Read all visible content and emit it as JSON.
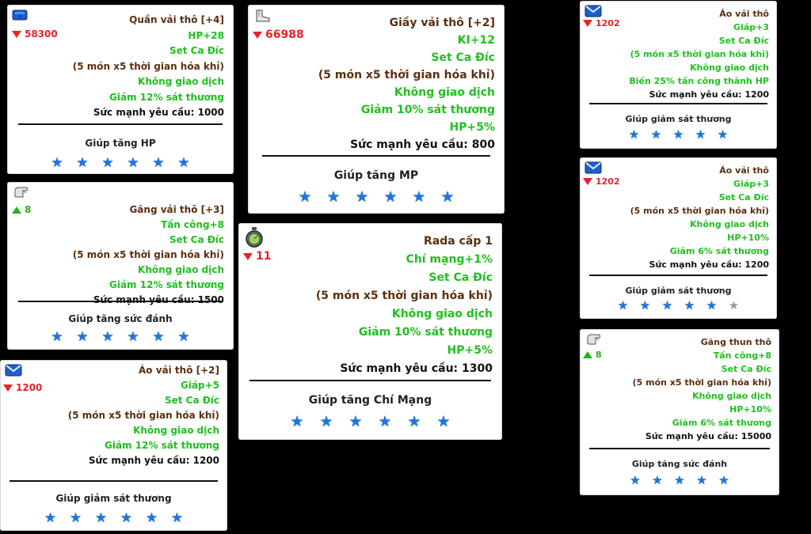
{
  "colors": {
    "background": "#000000",
    "card": "#ffffff",
    "title": "#5b2f10",
    "green": "#1fc01f",
    "price_down": "#e8222a",
    "price_up": "#21b421",
    "star_on": "#1b77e0",
    "star_off": "#9a9a9a"
  },
  "cards": [
    {
      "icon": "pants-icon",
      "price": "58300",
      "price_dir": "down",
      "title": "Quần vải thô [+4]",
      "lines": [
        {
          "t": "HP+28",
          "c": "green"
        },
        {
          "t": "Set Ca Đíc",
          "c": "green"
        },
        {
          "t": "(5 món x5 thời gian hóa khỉ)",
          "c": "brown"
        },
        {
          "t": "Không giao dịch",
          "c": "green"
        },
        {
          "t": "Giảm 12% sát thương",
          "c": "green"
        },
        {
          "t": "Sức mạnh yêu cầu: 1000",
          "c": "black"
        }
      ],
      "caption": "Giúp tăng HP",
      "stars": [
        1,
        1,
        1,
        1,
        1,
        1
      ]
    },
    {
      "icon": "glove-icon",
      "price": "8",
      "price_dir": "up",
      "title": "Găng vải thô [+3]",
      "lines": [
        {
          "t": "Tấn công+8",
          "c": "green"
        },
        {
          "t": "Set Ca Đíc",
          "c": "green"
        },
        {
          "t": "(5 món x5 thời gian hóa khỉ)",
          "c": "brown"
        },
        {
          "t": "Không giao dịch",
          "c": "green"
        },
        {
          "t": "Giảm 12% sát thương",
          "c": "green"
        },
        {
          "t": "Sức mạnh yêu cầu: 1500",
          "c": "black"
        }
      ],
      "caption": "Giúp tăng sức đánh",
      "stars": [
        1,
        1,
        1,
        1,
        1,
        1
      ]
    },
    {
      "icon": "shirt-icon",
      "price": "1200",
      "price_dir": "down",
      "title": "Áo vải thô [+2]",
      "lines": [
        {
          "t": "Giáp+5",
          "c": "green"
        },
        {
          "t": "Set Ca Đíc",
          "c": "green"
        },
        {
          "t": "(5 món x5 thời gian hóa khỉ)",
          "c": "brown"
        },
        {
          "t": "Không giao dịch",
          "c": "green"
        },
        {
          "t": "Giảm 12% sát thương",
          "c": "green"
        },
        {
          "t": "Sức mạnh yêu cầu: 1200",
          "c": "black"
        }
      ],
      "caption": "Giúp giảm sát thương",
      "stars": [
        1,
        1,
        1,
        1,
        1,
        1
      ]
    },
    {
      "icon": "shoe-icon",
      "price": "66988",
      "price_dir": "down",
      "title": "Giầy vải thô [+2]",
      "lines": [
        {
          "t": "KI+12",
          "c": "green"
        },
        {
          "t": "Set Ca Đíc",
          "c": "green"
        },
        {
          "t": "(5 món x5 thời gian hóa khỉ)",
          "c": "brown"
        },
        {
          "t": "Không giao dịch",
          "c": "green"
        },
        {
          "t": "Giảm 10% sát thương",
          "c": "green"
        },
        {
          "t": "HP+5%",
          "c": "green"
        },
        {
          "t": "Sức mạnh yêu cầu: 800",
          "c": "black"
        }
      ],
      "caption": "Giúp tăng MP",
      "stars": [
        1,
        1,
        1,
        1,
        1,
        1
      ]
    },
    {
      "icon": "radar-icon",
      "price": "11",
      "price_dir": "down",
      "title": "Rada cấp 1",
      "lines": [
        {
          "t": "Chí mạng+1%",
          "c": "green"
        },
        {
          "t": "Set Ca Đíc",
          "c": "green"
        },
        {
          "t": "(5 món x5 thời gian hóa khỉ)",
          "c": "brown"
        },
        {
          "t": "Không giao dịch",
          "c": "green"
        },
        {
          "t": "Giảm 10% sát thương",
          "c": "green"
        },
        {
          "t": "HP+5%",
          "c": "green"
        },
        {
          "t": "Sức mạnh yêu cầu: 1300",
          "c": "black"
        }
      ],
      "caption": "Giúp tăng Chí Mạng",
      "stars": [
        1,
        1,
        1,
        1,
        1,
        1
      ]
    },
    {
      "icon": "shirt-icon",
      "price": "1202",
      "price_dir": "down",
      "title": "Áo vải thô",
      "lines": [
        {
          "t": "Giáp+3",
          "c": "green"
        },
        {
          "t": "Set Ca Đíc",
          "c": "green"
        },
        {
          "t": "(5 món x5 thời gian hóa khỉ)",
          "c": "green"
        },
        {
          "t": "Không giao dịch",
          "c": "green"
        },
        {
          "t": "Biến 25% tấn công thành HP",
          "c": "green"
        },
        {
          "t": "Sức mạnh yêu cầu: 1200",
          "c": "black"
        }
      ],
      "caption": "Giúp giảm sát thương",
      "stars": [
        1,
        1,
        1,
        1,
        1
      ]
    },
    {
      "icon": "shirt-icon",
      "price": "1202",
      "price_dir": "down",
      "title": "Áo vải thô",
      "lines": [
        {
          "t": "Giáp+3",
          "c": "green"
        },
        {
          "t": "Set Ca Đíc",
          "c": "green"
        },
        {
          "t": "(5 món x5 thời gian hóa khỉ)",
          "c": "brown"
        },
        {
          "t": "Không giao dịch",
          "c": "green"
        },
        {
          "t": "HP+10%",
          "c": "green"
        },
        {
          "t": "Giảm 6% sát thương",
          "c": "green"
        },
        {
          "t": "Sức mạnh yêu cầu: 1200",
          "c": "black"
        }
      ],
      "caption": "Giúp giảm sát thương",
      "stars": [
        1,
        1,
        1,
        1,
        1,
        0
      ]
    },
    {
      "icon": "glove-icon",
      "price": "8",
      "price_dir": "up",
      "title": "Găng thun thô",
      "lines": [
        {
          "t": "Tấn công+8",
          "c": "green"
        },
        {
          "t": "Set Ca Đíc",
          "c": "green"
        },
        {
          "t": "(5 món x5 thời gian hóa khỉ)",
          "c": "brown"
        },
        {
          "t": "Không giao dịch",
          "c": "green"
        },
        {
          "t": "HP+10%",
          "c": "green"
        },
        {
          "t": "Giảm 6% sát thương",
          "c": "green"
        },
        {
          "t": "Sức mạnh yêu cầu: 15000",
          "c": "black"
        }
      ],
      "caption": "Giúp tăng sức đánh",
      "stars": [
        1,
        1,
        1,
        1,
        1
      ]
    }
  ]
}
